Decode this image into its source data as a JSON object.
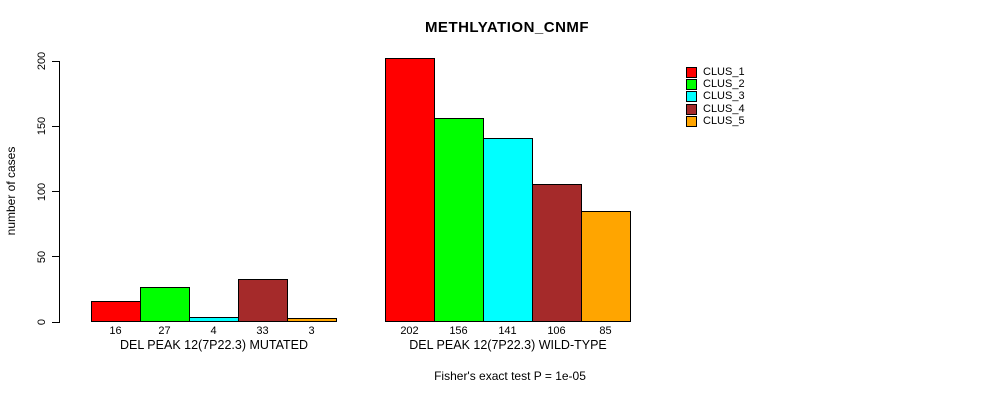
{
  "chart_data": {
    "type": "bar",
    "title": "METHLYATION_CNMF",
    "ylabel": "number of cases",
    "ylim": [
      0,
      200
    ],
    "yticks": [
      0,
      50,
      100,
      150,
      200
    ],
    "grid": false,
    "legend_position": "right",
    "groups": [
      {
        "label": "DEL PEAK 12(7P22.3) MUTATED"
      },
      {
        "label": "DEL PEAK 12(7P22.3) WILD-TYPE"
      }
    ],
    "series": [
      {
        "name": "CLUS_1",
        "color": "#ff0000",
        "values": [
          16,
          202
        ]
      },
      {
        "name": "CLUS_2",
        "color": "#00ff00",
        "values": [
          27,
          156
        ]
      },
      {
        "name": "CLUS_3",
        "color": "#00ffff",
        "values": [
          4,
          141
        ]
      },
      {
        "name": "CLUS_4",
        "color": "#a52a2a",
        "values": [
          33,
          106
        ]
      },
      {
        "name": "CLUS_5",
        "color": "#ffa500",
        "values": [
          3,
          85
        ]
      }
    ],
    "footnote": "Fisher's exact test P = 1e-05"
  }
}
